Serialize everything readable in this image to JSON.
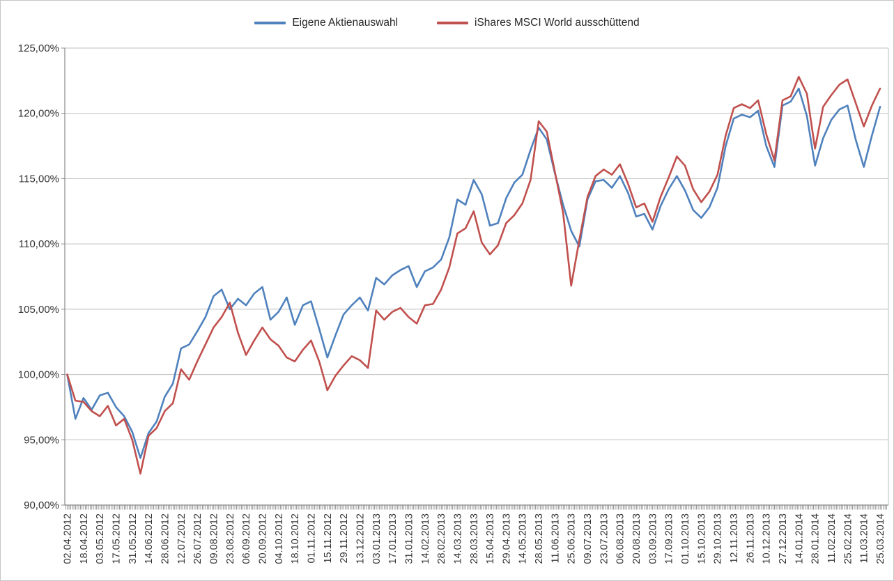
{
  "legend": {
    "items": [
      {
        "label": "Eigene Aktienauswahl",
        "color": "#4F81BD"
      },
      {
        "label": "iShares MSCI World ausschüttend",
        "color": "#C0504D"
      }
    ]
  },
  "chart_data": {
    "type": "line",
    "title": "",
    "y_axis": {
      "min": 90,
      "max": 125,
      "step": 5,
      "tick_labels": [
        "125,00%",
        "120,00%",
        "115,00%",
        "110,00%",
        "105,00%",
        "100,00%",
        "95,00%",
        "90,00%"
      ]
    },
    "x_axis": {
      "labels": [
        "02.04.2012",
        "18.04.2012",
        "03.05.2012",
        "17.05.2012",
        "31.05.2012",
        "14.06.2012",
        "28.06.2012",
        "12.07.2012",
        "26.07.2012",
        "09.08.2012",
        "23.08.2012",
        "06.09.2012",
        "20.09.2012",
        "04.10.2012",
        "18.10.2012",
        "01.11.2012",
        "15.11.2012",
        "29.11.2012",
        "13.12.2012",
        "03.01.2013",
        "17.01.2013",
        "31.01.2013",
        "14.02.2013",
        "28.02.2013",
        "14.03.2013",
        "28.03.2013",
        "15.04.2013",
        "29.04.2013",
        "14.05.2013",
        "28.05.2013",
        "11.06.2013",
        "25.06.2013",
        "09.07.2013",
        "23.07.2013",
        "06.08.2013",
        "20.08.2013",
        "03.09.2013",
        "17.09.2013",
        "01.10.2013",
        "15.10.2013",
        "29.10.2013",
        "12.11.2013",
        "26.11.2013",
        "10.12.2013",
        "27.12.2013",
        "14.01.2014",
        "28.01.2014",
        "11.02.2014",
        "25.02.2014",
        "11.03.2014",
        "25.03.2014"
      ],
      "ticks_per_label_interval": 10
    },
    "samples_per_interval": 2,
    "series": [
      {
        "name": "Eigene Aktienauswahl",
        "color": "#4F81BD",
        "values": [
          100.0,
          96.6,
          98.2,
          97.3,
          98.4,
          98.6,
          97.5,
          96.8,
          95.6,
          93.6,
          95.5,
          96.4,
          98.3,
          99.3,
          102.0,
          102.3,
          103.3,
          104.4,
          106.0,
          106.5,
          105.0,
          105.8,
          105.3,
          106.2,
          106.7,
          104.2,
          104.8,
          105.9,
          103.8,
          105.3,
          105.6,
          103.5,
          101.3,
          103.0,
          104.6,
          105.3,
          105.9,
          104.9,
          107.4,
          106.9,
          107.6,
          108.0,
          108.3,
          106.7,
          107.9,
          108.2,
          108.8,
          110.5,
          113.4,
          113.0,
          114.9,
          113.8,
          111.4,
          111.6,
          113.5,
          114.7,
          115.3,
          117.2,
          118.9,
          118.0,
          115.4,
          113.0,
          111.0,
          109.8,
          113.4,
          114.8,
          114.9,
          114.3,
          115.2,
          113.9,
          112.1,
          112.3,
          111.1,
          112.9,
          114.2,
          115.2,
          114.1,
          112.6,
          112.0,
          112.8,
          114.3,
          117.5,
          119.6,
          119.9,
          119.7,
          120.2,
          117.5,
          115.9,
          120.6,
          120.9,
          121.9,
          119.8,
          116.0,
          118.1,
          119.5,
          120.3,
          120.6,
          118.0,
          115.9,
          118.3,
          120.5
        ]
      },
      {
        "name": "iShares MSCI World ausschüttend",
        "color": "#C0504D",
        "values": [
          100.0,
          98.0,
          97.9,
          97.2,
          96.8,
          97.6,
          96.1,
          96.6,
          95.0,
          92.4,
          95.3,
          95.9,
          97.2,
          97.8,
          100.4,
          99.6,
          101.0,
          102.3,
          103.6,
          104.4,
          105.5,
          103.2,
          101.5,
          102.6,
          103.6,
          102.7,
          102.2,
          101.3,
          101.0,
          101.9,
          102.6,
          101.0,
          98.8,
          99.9,
          100.7,
          101.4,
          101.1,
          100.5,
          104.9,
          104.2,
          104.8,
          105.1,
          104.4,
          103.9,
          105.3,
          105.4,
          106.5,
          108.2,
          110.8,
          111.2,
          112.5,
          110.1,
          109.2,
          109.9,
          111.6,
          112.2,
          113.1,
          114.9,
          119.4,
          118.6,
          115.5,
          112.4,
          106.8,
          110.3,
          113.6,
          115.2,
          115.7,
          115.3,
          116.1,
          114.6,
          112.8,
          113.1,
          111.7,
          113.6,
          115.1,
          116.7,
          116.0,
          114.2,
          113.2,
          114.0,
          115.3,
          118.3,
          120.4,
          120.7,
          120.4,
          121.0,
          118.4,
          116.4,
          121.0,
          121.3,
          122.8,
          121.5,
          117.3,
          120.5,
          121.4,
          122.2,
          122.6,
          120.8,
          119.0,
          120.6,
          121.9
        ]
      }
    ],
    "style": {
      "grid_color": "#BFBFBF",
      "axis_color": "#898989",
      "tick_color": "#808080",
      "label_color": "#333333",
      "background": "#FFFFFF"
    }
  }
}
